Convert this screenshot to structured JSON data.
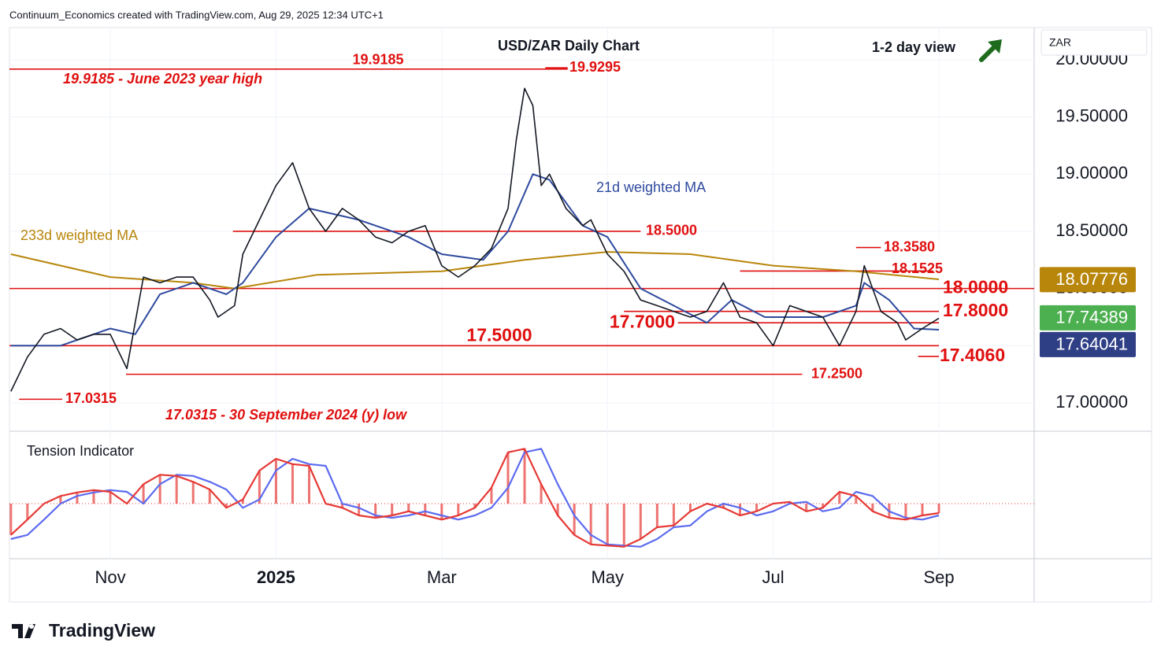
{
  "header": {
    "credit": "Continuum_Economics created with TradingView.com, Aug 29, 2025 12:34 UTC+1",
    "view": "1-2 day view",
    "brand": "TradingView"
  },
  "chart_data": [
    {
      "type": "line",
      "title": "USD/ZAR Daily Chart",
      "currency": "ZAR",
      "xlim": [
        -1.217,
        11.15
      ],
      "ylim": [
        16.752,
        20.282
      ],
      "xticks": [
        {
          "value": 0,
          "label": "Nov"
        },
        {
          "value": 2,
          "label": "2025"
        },
        {
          "value": 4,
          "label": "Mar"
        },
        {
          "value": 6,
          "label": "May"
        },
        {
          "value": 8,
          "label": "Jul"
        },
        {
          "value": 10,
          "label": "Sep"
        }
      ],
      "yticks": [
        {
          "value": 17,
          "label": "17.00000"
        },
        {
          "value": 17.5,
          "label": "17.50000"
        },
        {
          "value": 18,
          "label": "18.00000"
        },
        {
          "value": 18.5,
          "label": "18.50000"
        },
        {
          "value": 19,
          "label": "19.00000"
        },
        {
          "value": 19.5,
          "label": "19.50000"
        },
        {
          "value": 20,
          "label": "20.00000"
        }
      ],
      "grid": true,
      "series": [
        {
          "color": "#131722",
          "width": 1.6,
          "x": [
            -1.2,
            -1.0,
            -0.8,
            -0.6,
            -0.4,
            -0.2,
            0,
            0.2,
            0.3,
            0.4,
            0.6,
            0.8,
            1.0,
            1.2,
            1.3,
            1.5,
            1.6,
            1.8,
            2.0,
            2.2,
            2.4,
            2.6,
            2.8,
            3.0,
            3.2,
            3.4,
            3.6,
            3.8,
            4.0,
            4.2,
            4.4,
            4.6,
            4.8,
            4.9,
            5.0,
            5.1,
            5.2,
            5.3,
            5.5,
            5.7,
            5.8,
            6.0,
            6.2,
            6.4,
            6.6,
            6.8,
            7.0,
            7.2,
            7.4,
            7.6,
            7.8,
            8.0,
            8.2,
            8.4,
            8.6,
            8.8,
            9.0,
            9.1,
            9.3,
            9.5,
            9.6,
            9.8,
            10.0
          ],
          "values": [
            17.1,
            17.4,
            17.6,
            17.65,
            17.55,
            17.6,
            17.6,
            17.3,
            17.7,
            18.1,
            18.05,
            18.1,
            18.1,
            17.9,
            17.75,
            17.85,
            18.3,
            18.6,
            18.9,
            19.1,
            18.7,
            18.5,
            18.7,
            18.6,
            18.45,
            18.4,
            18.5,
            18.55,
            18.2,
            18.1,
            18.2,
            18.35,
            18.7,
            19.3,
            19.75,
            19.6,
            18.9,
            19.0,
            18.7,
            18.55,
            18.6,
            18.3,
            18.15,
            17.9,
            17.85,
            17.8,
            17.75,
            17.8,
            18.05,
            17.75,
            17.7,
            17.5,
            17.85,
            17.8,
            17.75,
            17.5,
            17.8,
            18.2,
            17.8,
            17.7,
            17.55,
            17.65,
            17.74
          ]
        },
        {
          "name": "21d weighted MA",
          "color": "#2f4a9e",
          "width": 2,
          "x": [
            -1.2,
            -0.6,
            0,
            0.3,
            0.6,
            1.0,
            1.4,
            1.6,
            2.0,
            2.4,
            3.0,
            3.6,
            4.0,
            4.5,
            4.8,
            5.1,
            5.3,
            5.7,
            6.0,
            6.4,
            6.8,
            7.2,
            7.5,
            7.9,
            8.2,
            8.6,
            9.0,
            9.1,
            9.4,
            9.7,
            10.0
          ],
          "values": [
            17.5,
            17.5,
            17.65,
            17.6,
            17.95,
            18.05,
            17.95,
            18.05,
            18.45,
            18.7,
            18.6,
            18.45,
            18.3,
            18.25,
            18.5,
            19.0,
            18.95,
            18.55,
            18.45,
            18.0,
            17.85,
            17.7,
            17.9,
            17.75,
            17.75,
            17.75,
            17.85,
            18.05,
            17.9,
            17.65,
            17.64
          ]
        },
        {
          "name": "233d weighted MA",
          "color": "#b8860b",
          "width": 2,
          "x": [
            -1.2,
            0,
            1.0,
            1.5,
            2.5,
            4.0,
            5.0,
            6.0,
            7.0,
            8.0,
            9.0,
            10.0
          ],
          "values": [
            18.3,
            18.1,
            18.05,
            18.0,
            18.12,
            18.15,
            18.25,
            18.32,
            18.3,
            18.2,
            18.15,
            18.08
          ]
        }
      ],
      "levels": [
        {
          "value": 19.9295,
          "label": "19.9295"
        },
        {
          "value": 19.9185,
          "label": "19.9185"
        },
        {
          "value": 18.5,
          "label": "18.5000"
        },
        {
          "value": 18.358,
          "label": "18.3580"
        },
        {
          "value": 18.1525,
          "label": "18.1525"
        },
        {
          "value": 18,
          "label": "18.0000"
        },
        {
          "value": 17.8,
          "label": "17.8000"
        },
        {
          "value": 17.7,
          "label": "17.7000"
        },
        {
          "value": 17.5,
          "label": "17.5000"
        },
        {
          "value": 17.406,
          "label": "17.4060"
        },
        {
          "value": 17.25,
          "label": "17.2500"
        },
        {
          "value": 17.0315,
          "label": "17.0315"
        }
      ],
      "level_color": "#e01010",
      "price_labels": [
        {
          "value": 18.07776,
          "color": "#b8860b"
        },
        {
          "value": 17.74389,
          "color": "#4caf50"
        },
        {
          "value": 17.64041,
          "color": "#2f3f86"
        }
      ],
      "annotations": [
        "19.9185 - June 2023 year high",
        "17.0315 - 30 September 2024 (y) low"
      ]
    },
    {
      "type": "oscillator",
      "title": "Tension Indicator",
      "xlim": [
        -1.217,
        11.15
      ],
      "ylim": [
        -0.933,
        1.16
      ],
      "x": [
        -1.2,
        -1.0,
        -0.8,
        -0.6,
        -0.4,
        -0.2,
        0,
        0.2,
        0.4,
        0.6,
        0.8,
        1.0,
        1.2,
        1.4,
        1.6,
        1.8,
        2.0,
        2.2,
        2.4,
        2.6,
        2.8,
        3.0,
        3.2,
        3.4,
        3.6,
        3.8,
        4.0,
        4.2,
        4.4,
        4.6,
        4.8,
        5.0,
        5.2,
        5.4,
        5.6,
        5.8,
        6.0,
        6.2,
        6.4,
        6.6,
        6.8,
        7.0,
        7.2,
        7.4,
        7.6,
        7.8,
        8.0,
        8.2,
        8.4,
        8.6,
        8.8,
        9.0,
        9.2,
        9.4,
        9.6,
        9.8,
        10.0
      ],
      "series": [
        {
          "color": "#e53935",
          "histogram": true,
          "values": [
            -0.53,
            -0.27,
            0,
            0.13,
            0.19,
            0.23,
            0.2,
            0,
            0.33,
            0.49,
            0.47,
            0.37,
            0.24,
            -0.07,
            0.07,
            0.56,
            0.76,
            0.67,
            0.64,
            0,
            -0.07,
            -0.2,
            -0.24,
            -0.2,
            -0.13,
            -0.2,
            -0.27,
            -0.2,
            -0.07,
            0.27,
            0.87,
            0.93,
            0.33,
            -0.2,
            -0.53,
            -0.69,
            -0.71,
            -0.73,
            -0.6,
            -0.4,
            -0.37,
            -0.13,
            0,
            -0.07,
            -0.2,
            -0.13,
            0,
            0.03,
            -0.13,
            -0.07,
            0.2,
            0.13,
            -0.13,
            -0.24,
            -0.27,
            -0.2,
            -0.16
          ]
        },
        {
          "color": "#5c6bf0",
          "histogram": false,
          "values": [
            -0.6,
            -0.53,
            -0.27,
            0,
            0.13,
            0.19,
            0.23,
            0.2,
            0,
            0.33,
            0.49,
            0.47,
            0.37,
            0.24,
            -0.07,
            0.07,
            0.56,
            0.76,
            0.67,
            0.64,
            0,
            -0.07,
            -0.2,
            -0.24,
            -0.2,
            -0.13,
            -0.2,
            -0.27,
            -0.2,
            -0.07,
            0.27,
            0.87,
            0.93,
            0.33,
            -0.2,
            -0.53,
            -0.69,
            -0.71,
            -0.73,
            -0.6,
            -0.4,
            -0.37,
            -0.13,
            0,
            -0.07,
            -0.2,
            -0.13,
            0,
            0.03,
            -0.13,
            -0.07,
            0.2,
            0.13,
            -0.13,
            -0.24,
            -0.27,
            -0.2
          ]
        }
      ]
    }
  ]
}
